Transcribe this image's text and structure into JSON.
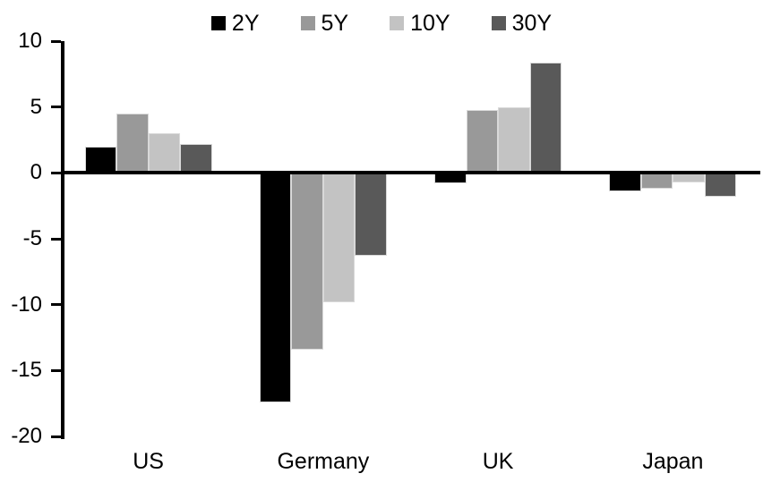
{
  "chart_data": {
    "type": "bar",
    "title": "",
    "categories": [
      "US",
      "Germany",
      "UK",
      "Japan"
    ],
    "series": [
      {
        "name": "2Y",
        "color": "#000000",
        "values": [
          2.0,
          -17.4,
          -0.8,
          -1.4
        ]
      },
      {
        "name": "5Y",
        "color": "#999999",
        "values": [
          4.5,
          -13.4,
          4.8,
          -1.2
        ]
      },
      {
        "name": "10Y",
        "color": "#c3c3c3",
        "values": [
          3.0,
          -9.8,
          5.0,
          -0.7
        ]
      },
      {
        "name": "30Y",
        "color": "#595959",
        "values": [
          2.2,
          -6.3,
          8.4,
          -1.8
        ]
      }
    ],
    "y_axis": {
      "min": -20,
      "max": 10,
      "tick_step": 5,
      "tick_values": [
        10,
        5,
        0,
        -5,
        -10,
        -15,
        -20
      ],
      "tick_labels": [
        "10",
        "5",
        "0",
        "-5",
        "-10",
        "-15",
        "-20"
      ]
    },
    "legend_position": "top-center",
    "grid": false,
    "colors": {
      "axis": "#000000",
      "bar_outline": "#d9d9d9",
      "background": "#ffffff",
      "text": "#000000"
    }
  }
}
